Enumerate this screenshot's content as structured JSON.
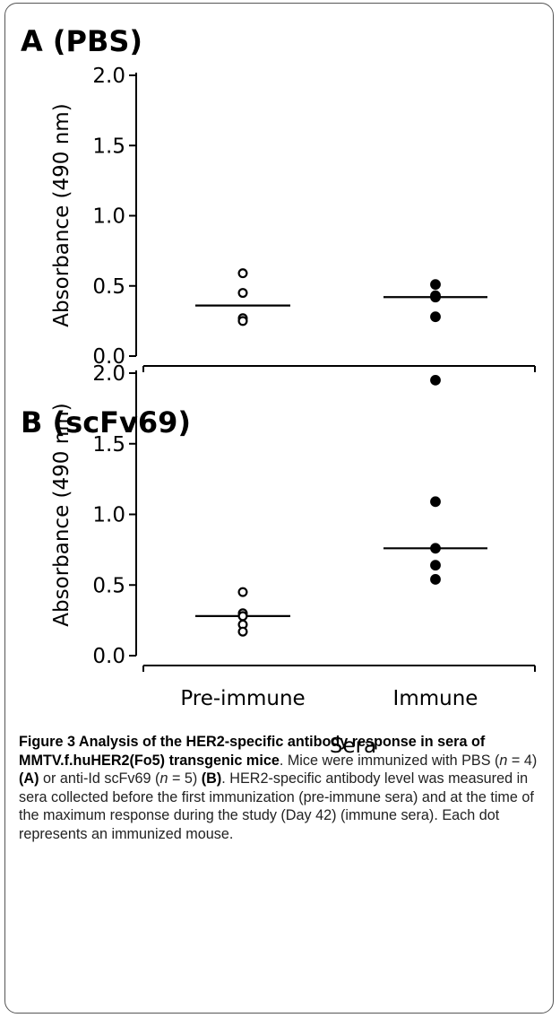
{
  "figure": {
    "x_axis_title": "Sera",
    "categories": [
      "Pre-immune",
      "Immune"
    ]
  },
  "chart_data": [
    {
      "type": "scatter",
      "title": "A (PBS)",
      "ylabel": "Absorbance (490 nm)",
      "xlabel": "",
      "categories": [
        "Pre-immune",
        "Immune"
      ],
      "ylim": [
        0,
        2.0
      ],
      "yticks": [
        "0.0",
        "0.5",
        "1.0",
        "1.5",
        "2.0"
      ],
      "grid": false,
      "series": [
        {
          "category": "Pre-immune",
          "marker": "open-circle",
          "values": [
            0.59,
            0.45,
            0.27,
            0.25
          ],
          "median": 0.36
        },
        {
          "category": "Immune",
          "marker": "filled-circle",
          "values": [
            0.51,
            0.43,
            0.42,
            0.28
          ],
          "median": 0.42
        }
      ]
    },
    {
      "type": "scatter",
      "title": "B (scFv69)",
      "ylabel": "Absorbance (490 nm)",
      "xlabel": "Sera",
      "categories": [
        "Pre-immune",
        "Immune"
      ],
      "ylim": [
        0,
        2.0
      ],
      "yticks": [
        "0.0",
        "0.5",
        "1.0",
        "1.5",
        "2.0"
      ],
      "grid": false,
      "series": [
        {
          "category": "Pre-immune",
          "marker": "open-circle",
          "values": [
            0.45,
            0.3,
            0.28,
            0.22,
            0.17
          ],
          "median": 0.28
        },
        {
          "category": "Immune",
          "marker": "filled-circle",
          "values": [
            1.95,
            1.09,
            0.76,
            0.64,
            0.54
          ],
          "median": 0.76
        }
      ]
    }
  ],
  "caption": {
    "label": "Figure 3 ",
    "title": "Analysis of the HER2-specific antibody response in sera of MMTV.f.huHER2(Fo5) transgenic mice",
    "t1": ". Mice were immunized with PBS (",
    "n": "n",
    "t2": " = 4) ",
    "refA": "(A)",
    "t3": " or anti-Id scFv69 (",
    "t4": " = 5) ",
    "refB": "(B)",
    "t5": ". HER2-specific antibody level was measured in sera collected before the first immunization (pre-immune sera) and at the time of the maximum response during the study (Day 42) (immune sera). Each dot represents an immunized mouse."
  }
}
